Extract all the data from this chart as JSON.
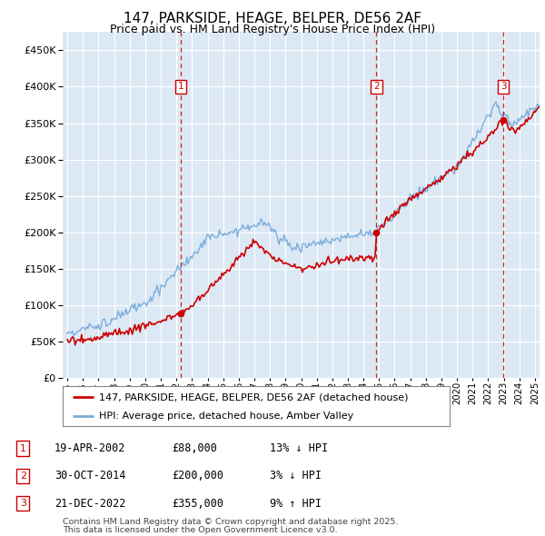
{
  "title": "147, PARKSIDE, HEAGE, BELPER, DE56 2AF",
  "subtitle": "Price paid vs. HM Land Registry's House Price Index (HPI)",
  "ylim": [
    0,
    475000
  ],
  "yticks": [
    0,
    50000,
    100000,
    150000,
    200000,
    250000,
    300000,
    350000,
    400000,
    450000
  ],
  "xlim_start": 1994.7,
  "xlim_end": 2025.3,
  "plot_bg_color": "#dce9f5",
  "grid_color": "#ffffff",
  "legend_line1": "147, PARKSIDE, HEAGE, BELPER, DE56 2AF (detached house)",
  "legend_line2": "HPI: Average price, detached house, Amber Valley",
  "transactions": [
    {
      "num": 1,
      "date": "19-APR-2002",
      "price": 88000,
      "pct": "13%",
      "dir": "↓",
      "year": 2002.29
    },
    {
      "num": 2,
      "date": "30-OCT-2014",
      "price": 200000,
      "pct": "3%",
      "dir": "↓",
      "year": 2014.83
    },
    {
      "num": 3,
      "date": "21-DEC-2022",
      "price": 355000,
      "pct": "9%",
      "dir": "↑",
      "year": 2022.97
    }
  ],
  "footnote1": "Contains HM Land Registry data © Crown copyright and database right 2025.",
  "footnote2": "This data is licensed under the Open Government Licence v3.0.",
  "red_line_color": "#cc0000",
  "blue_line_color": "#7aaddc"
}
